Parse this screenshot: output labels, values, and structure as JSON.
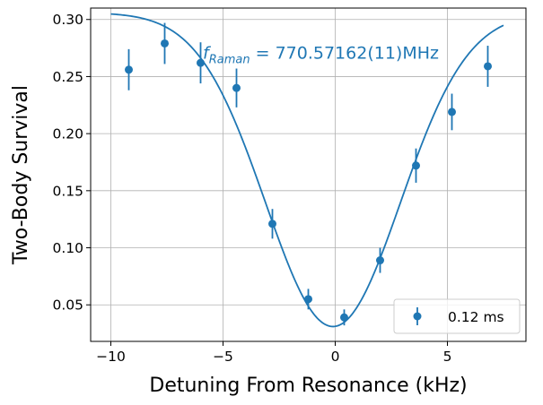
{
  "chart_data": {
    "type": "scatter",
    "xlabel": "Detuning From Resonance (kHz)",
    "ylabel": "Two-Body Survival",
    "xlim": [
      -10.9,
      8.5
    ],
    "ylim": [
      0.018,
      0.31
    ],
    "x_ticks": [
      -10,
      -5,
      0,
      5
    ],
    "x_tick_labels": [
      "−10",
      "−5",
      "0",
      "5"
    ],
    "y_ticks": [
      0.05,
      0.1,
      0.15,
      0.2,
      0.25,
      0.3
    ],
    "y_tick_labels": [
      "0.05",
      "0.10",
      "0.15",
      "0.20",
      "0.25",
      "0.30"
    ],
    "grid": true,
    "legend_position": "lower-right",
    "color": "#1f77b4",
    "annotation": {
      "symbol": "f",
      "subscript": "Raman",
      "value": " = 770.57162(11)MHz"
    },
    "series": [
      {
        "name": "0.12 ms",
        "kind": "errorbar",
        "x": [
          -9.2,
          -7.6,
          -6.0,
          -4.4,
          -2.8,
          -1.2,
          0.4,
          2.0,
          3.6,
          5.2,
          6.8
        ],
        "y": [
          0.256,
          0.279,
          0.262,
          0.24,
          0.121,
          0.055,
          0.039,
          0.089,
          0.172,
          0.219,
          0.259
        ],
        "yerr": [
          0.018,
          0.018,
          0.018,
          0.017,
          0.013,
          0.009,
          0.007,
          0.011,
          0.015,
          0.016,
          0.018
        ]
      },
      {
        "kind": "fit",
        "model": "gaussian",
        "x_range": [
          -10,
          7.5
        ],
        "baseline": 0.306,
        "amplitude": 0.275,
        "center": -0.1,
        "sigma": 3.0
      }
    ]
  }
}
